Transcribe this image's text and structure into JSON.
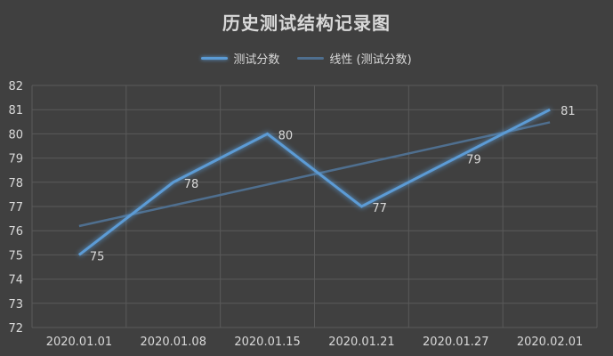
{
  "chart_data": {
    "type": "line",
    "title": "历史测试结构记录图",
    "categories": [
      "2020.01.01",
      "2020.01.08",
      "2020.01.15",
      "2020.01.21",
      "2020.01.27",
      "2020.02.01"
    ],
    "series": [
      {
        "name": "测试分数",
        "values": [
          75,
          78,
          80,
          77,
          79,
          81
        ],
        "color": "#5b9bd5"
      }
    ],
    "trendline": {
      "name": "线性 (测试分数)",
      "color": "#4f6f8f"
    },
    "ylim": [
      72,
      82
    ],
    "yticks": [
      "72",
      "73",
      "74",
      "75",
      "76",
      "77",
      "78",
      "79",
      "80",
      "81",
      "82"
    ],
    "grid": true,
    "legend": "top",
    "colors": {
      "background": "#404040",
      "grid": "#5a5a5a",
      "text": "#d9d9d9"
    }
  }
}
